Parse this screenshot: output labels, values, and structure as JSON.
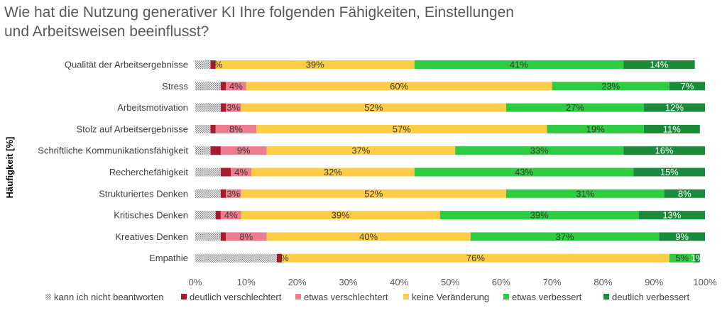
{
  "title_lines": [
    "Wie hat die Nutzung generativer KI Ihre folgenden Fähigkeiten, Einstellungen",
    "und Arbeitsweisen beeinflusst?"
  ],
  "chart_data": {
    "type": "bar",
    "orientation": "horizontal",
    "stacked": true,
    "title": "Wie hat die Nutzung generativer KI Ihre folgenden Fähigkeiten, Einstellungen und Arbeitsweisen beeinflusst?",
    "ylabel": "Häufigkeit [%]",
    "xlabel": "",
    "xlim": [
      0,
      100
    ],
    "x_ticks": [
      "0%",
      "10%",
      "20%",
      "30%",
      "40%",
      "50%",
      "60%",
      "70%",
      "80%",
      "90%",
      "100%"
    ],
    "grid": false,
    "legend_position": "bottom",
    "categories": [
      "Qualität der Arbeitsergebnisse",
      "Stress",
      "Arbeitsmotivation",
      "Stolz auf Arbeitsergebnisse",
      "Schriftliche Kommunikationsfähigkeit",
      "Recherchefähigkeit",
      "Strukturiertes Denken",
      "Kritisches Denken",
      "Kreatives Denken",
      "Empathie"
    ],
    "series": [
      {
        "name": "kann ich nicht beantworten",
        "color": "#bfbfbf",
        "pattern": "dots",
        "values": [
          3,
          5,
          5,
          3,
          3,
          5,
          5,
          4,
          5,
          16
        ],
        "labels": [
          "",
          "",
          "",
          "",
          "",
          "",
          "",
          "",
          "",
          ""
        ]
      },
      {
        "name": "deutlich verschlechtert",
        "color": "#a51c30",
        "values": [
          1,
          1,
          1,
          1,
          2,
          2,
          1,
          1,
          1,
          1
        ],
        "labels": [
          "",
          "",
          "",
          "",
          "",
          "",
          "",
          "",
          "",
          ""
        ]
      },
      {
        "name": "etwas verschlechtert",
        "color": "#ec7d8e",
        "values": [
          0,
          4,
          3,
          8,
          9,
          4,
          3,
          4,
          8,
          0
        ],
        "labels": [
          "%",
          "4%",
          "3%",
          "8%",
          "9%",
          "4%",
          "3%",
          "4%",
          "8%",
          "%"
        ]
      },
      {
        "name": "keine Veränderung",
        "color": "#fdcd47",
        "values": [
          39,
          60,
          52,
          57,
          37,
          32,
          52,
          39,
          40,
          76
        ],
        "labels": [
          "39%",
          "60%",
          "52%",
          "57%",
          "37%",
          "32%",
          "52%",
          "39%",
          "40%",
          "76%"
        ]
      },
      {
        "name": "etwas verbessert",
        "color": "#2ecc40",
        "values": [
          41,
          23,
          27,
          19,
          33,
          43,
          31,
          39,
          37,
          5
        ],
        "labels": [
          "41%",
          "23%",
          "27%",
          "19%",
          "33%",
          "43%",
          "31%",
          "39%",
          "37%",
          "5%"
        ]
      },
      {
        "name": "deutlich verbessert",
        "color": "#1b8a3a",
        "values": [
          14,
          7,
          12,
          11,
          16,
          15,
          8,
          13,
          9,
          1
        ],
        "labels": [
          "14%",
          "7%",
          "12%",
          "11%",
          "16%",
          "15%",
          "8%",
          "13%",
          "9%",
          "1%"
        ]
      }
    ]
  }
}
